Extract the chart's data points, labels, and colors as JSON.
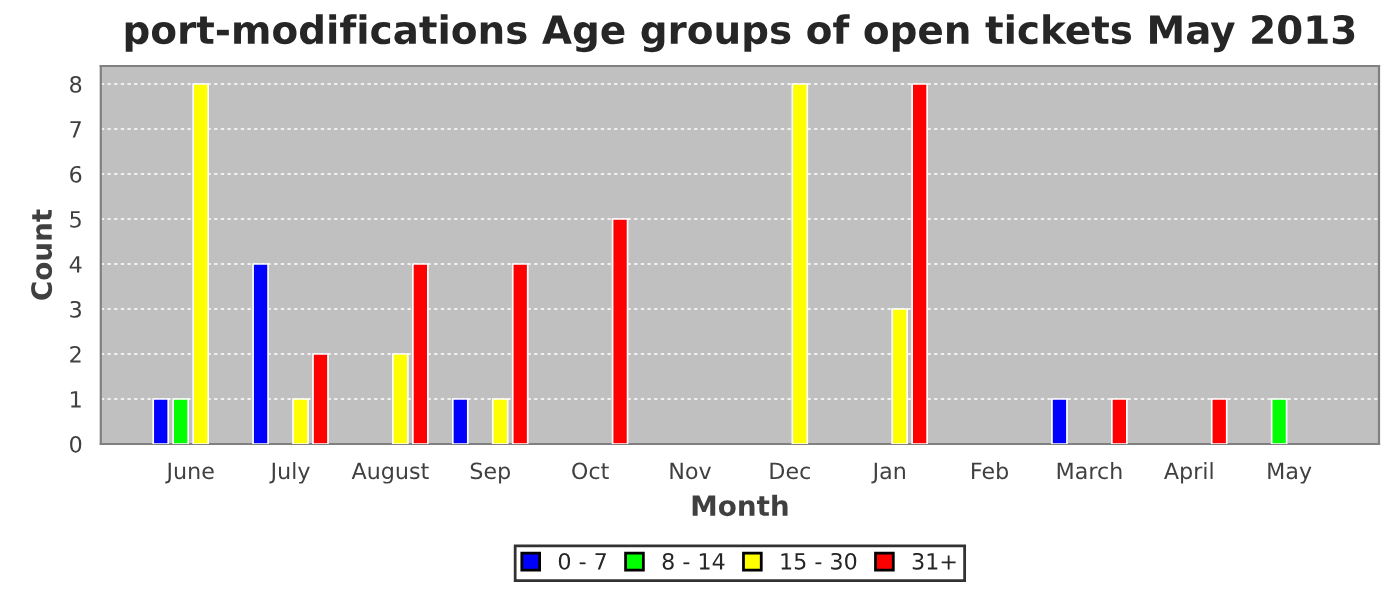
{
  "chart_data": {
    "type": "bar",
    "title": "port-modifications Age groups of open tickets May 2013",
    "xlabel": "Month",
    "ylabel": "Count",
    "categories": [
      "June",
      "July",
      "August",
      "Sep",
      "Oct",
      "Nov",
      "Dec",
      "Jan",
      "Feb",
      "March",
      "April",
      "May"
    ],
    "series": [
      {
        "name": "0 - 7",
        "color": "#0000ff",
        "values": [
          1,
          4,
          null,
          1,
          null,
          null,
          null,
          null,
          null,
          1,
          null,
          null
        ]
      },
      {
        "name": "8 - 14",
        "color": "#00ff00",
        "values": [
          1,
          null,
          null,
          null,
          null,
          null,
          null,
          null,
          null,
          null,
          null,
          1
        ]
      },
      {
        "name": "15 - 30",
        "color": "#ffff00",
        "values": [
          8,
          1,
          2,
          1,
          null,
          null,
          8,
          3,
          null,
          null,
          null,
          null
        ]
      },
      {
        "name": "31+",
        "color": "#ff0000",
        "values": [
          null,
          2,
          4,
          4,
          5,
          null,
          null,
          8,
          null,
          1,
          1,
          null
        ]
      }
    ],
    "ylim": [
      0,
      8.4
    ],
    "yticks": [
      0,
      1,
      2,
      3,
      4,
      5,
      6,
      7,
      8
    ],
    "grid": "y",
    "legend": "bottom"
  }
}
